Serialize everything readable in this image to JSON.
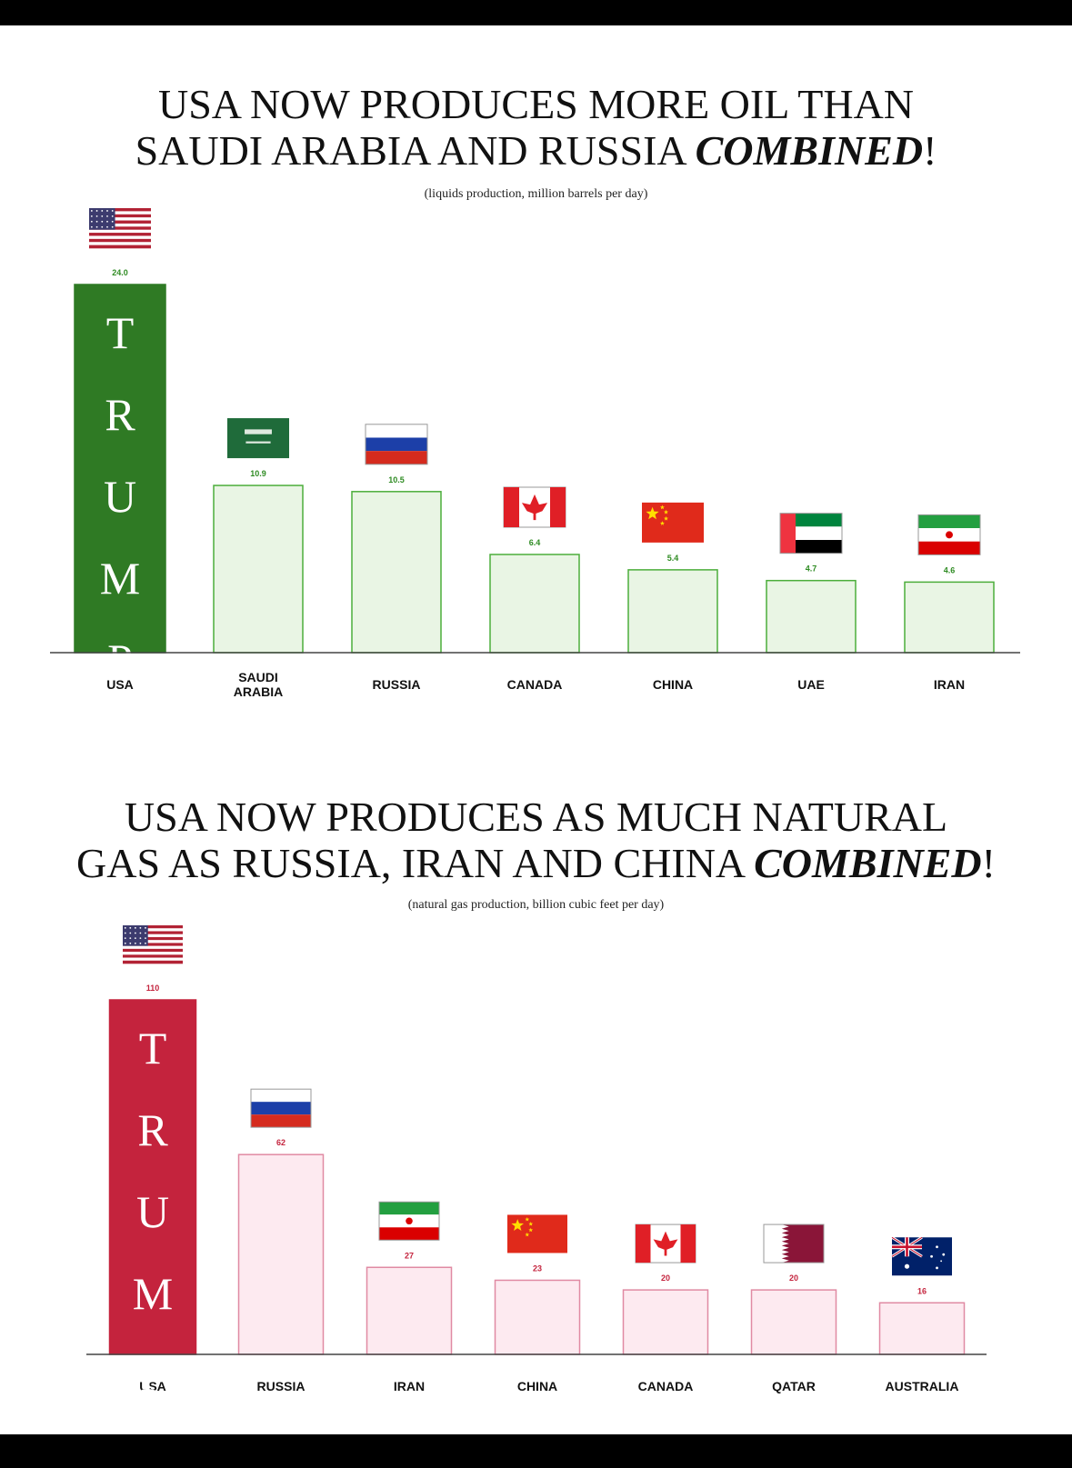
{
  "charts": [
    {
      "id": "oil",
      "title": {
        "line1": "USA NOW PRODUCES MORE OIL THAN",
        "line2_prefix": "SAUDI ARABIA AND RUSSIA ",
        "emphasis": "COMBINED",
        "suffix": "!"
      },
      "subtitle": "(liquids production, million barrels per day)",
      "bar_label": "TRUMP",
      "colors": {
        "highlight": "#2f7a24",
        "bar_fill": "#e9f5e4",
        "bar_stroke": "#4cae3b",
        "value_text": "#2e8b22"
      }
    },
    {
      "id": "gas",
      "title": {
        "line1": "USA NOW PRODUCES AS MUCH NATURAL",
        "line2_prefix": "GAS AS RUSSIA, IRAN AND CHINA ",
        "emphasis": "COMBINED",
        "suffix": "!"
      },
      "subtitle": "(natural gas production, billion cubic feet per day)",
      "bar_label": "TRUMP",
      "colors": {
        "highlight": "#c4233d",
        "bar_fill": "#fdeaf0",
        "bar_stroke": "#e08aa3",
        "value_text": "#c4233d"
      }
    }
  ],
  "chart_data": [
    {
      "type": "bar",
      "title": "USA NOW PRODUCES MORE OIL THAN SAUDI ARABIA AND RUSSIA COMBINED!",
      "subtitle": "(liquids production, million barrels per day)",
      "categories": [
        "USA",
        "SAUDI ARABIA",
        "RUSSIA",
        "CANADA",
        "CHINA",
        "UAE",
        "IRAN"
      ],
      "values": [
        24.0,
        10.9,
        10.5,
        6.4,
        5.4,
        4.7,
        4.6
      ],
      "value_labels": [
        "24.0",
        "10.9",
        "10.5",
        "6.4",
        "5.4",
        "4.7",
        "4.6"
      ],
      "flags": [
        "usa-flag",
        "saudi-arabia-flag",
        "russia-flag",
        "canada-flag",
        "china-flag",
        "uae-flag",
        "iran-flag"
      ],
      "ylim": [
        0,
        24.0
      ],
      "grid": false
    },
    {
      "type": "bar",
      "title": "USA NOW PRODUCES AS MUCH NATURAL GAS AS RUSSIA, IRAN AND CHINA COMBINED!",
      "subtitle": "(natural gas production, billion cubic feet per day)",
      "categories": [
        "USA",
        "RUSSIA",
        "IRAN",
        "CHINA",
        "CANADA",
        "QATAR",
        "AUSTRALIA"
      ],
      "values": [
        110,
        62,
        27,
        23,
        20,
        20,
        16
      ],
      "value_labels": [
        "110",
        "62",
        "27",
        "23",
        "20",
        "20",
        "16"
      ],
      "flags": [
        "usa-flag",
        "russia-flag",
        "iran-flag",
        "china-flag",
        "canada-flag",
        "qatar-flag",
        "australia-flag"
      ],
      "ylim": [
        0,
        110
      ],
      "grid": false
    }
  ]
}
